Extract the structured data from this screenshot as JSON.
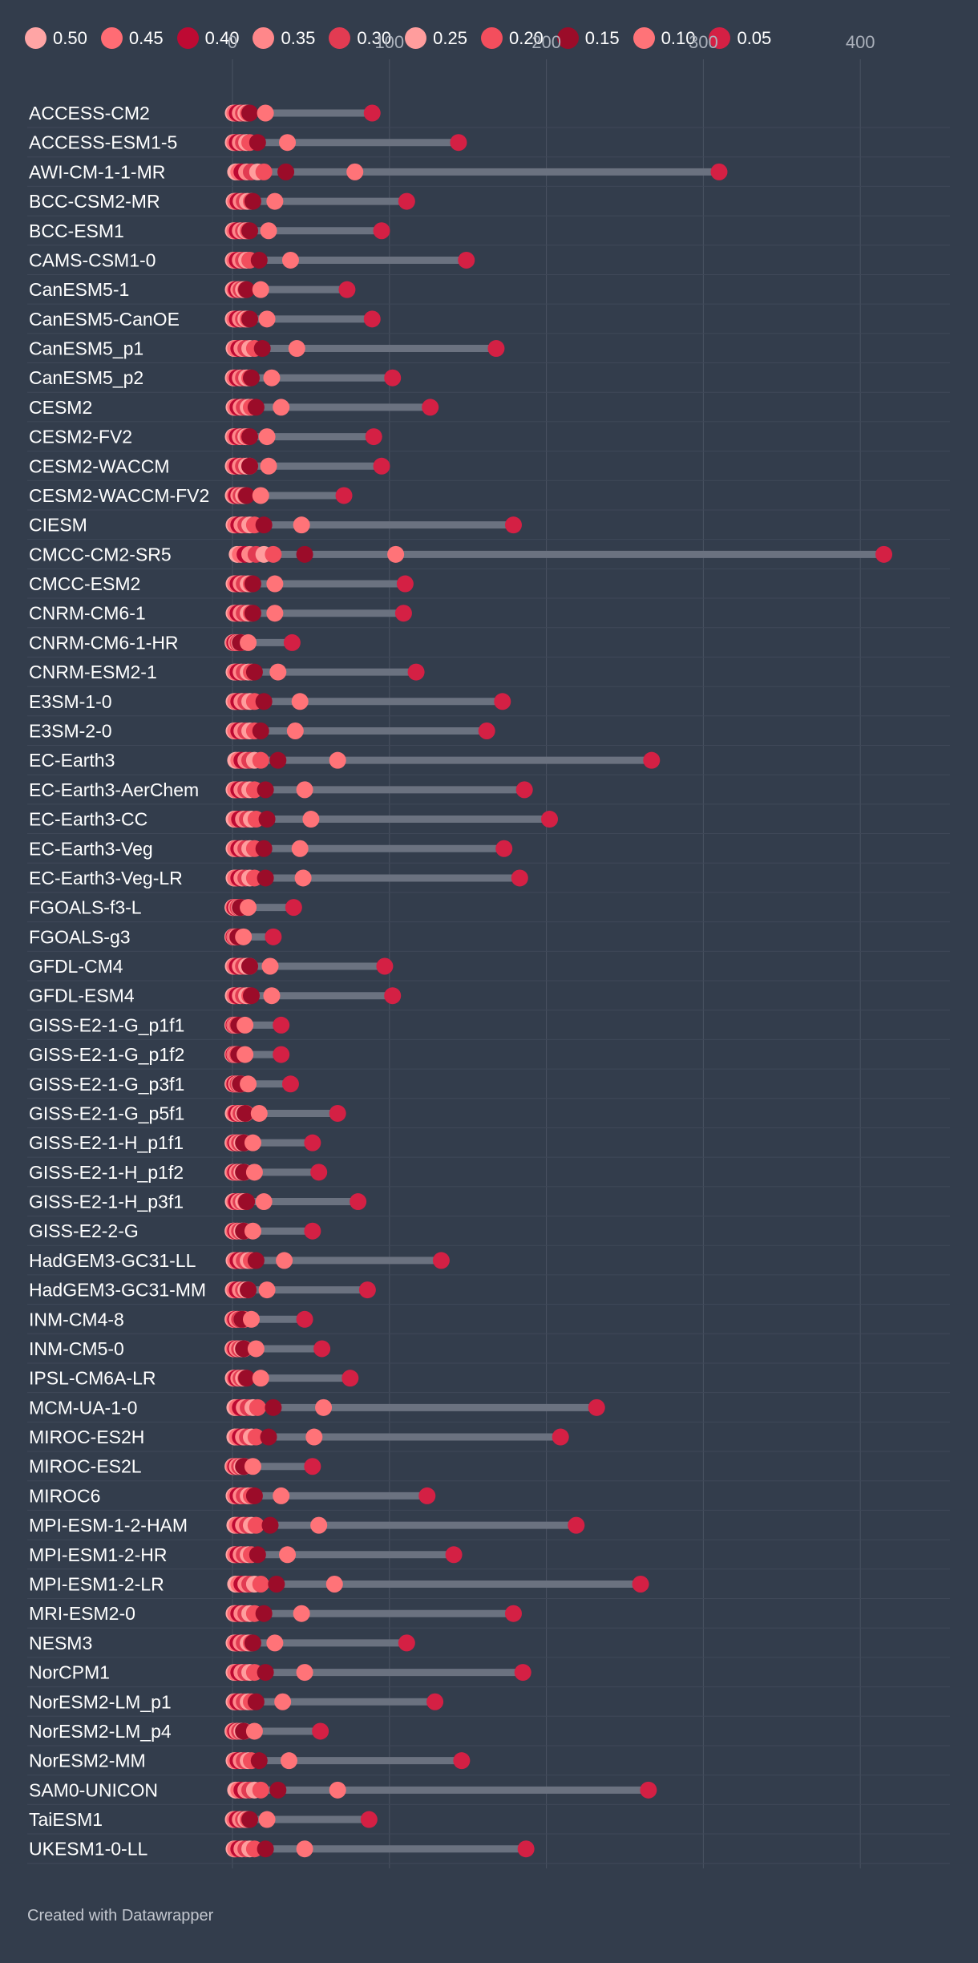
{
  "chart_data": {
    "type": "dot-range",
    "title": "",
    "xlabel": "",
    "ylabel": "",
    "xlim": [
      0,
      450
    ],
    "x_ticks": [
      0,
      100,
      200,
      300,
      400
    ],
    "legend": [
      {
        "label": "0.50",
        "color": "#ffa5a5"
      },
      {
        "label": "0.45",
        "color": "#ff6c74"
      },
      {
        "label": "0.40",
        "color": "#be0a33"
      },
      {
        "label": "0.35",
        "color": "#ff878a"
      },
      {
        "label": "0.30",
        "color": "#e23b52"
      },
      {
        "label": "0.25",
        "color": "#ff9d9d"
      },
      {
        "label": "0.20",
        "color": "#f34e5d"
      },
      {
        "label": "0.15",
        "color": "#9b0c29"
      },
      {
        "label": "0.10",
        "color": "#ff7378"
      },
      {
        "label": "0.05",
        "color": "#d42044"
      }
    ],
    "models": [
      {
        "name": "ACCESS-CM2",
        "values": [
          0.5,
          1.5,
          3,
          5,
          7,
          8.5,
          10,
          11,
          21,
          89
        ]
      },
      {
        "name": "ACCESS-ESM1-5",
        "values": [
          0.5,
          1.5,
          3,
          5,
          7,
          9,
          11,
          16,
          35,
          144
        ]
      },
      {
        "name": "AWI-CM-1-1-MR",
        "values": [
          2,
          4,
          6,
          9,
          12,
          16,
          20,
          34,
          78,
          310
        ]
      },
      {
        "name": "BCC-CSM2-MR",
        "values": [
          1,
          2,
          3.5,
          5.5,
          7.5,
          9.5,
          12,
          13,
          27,
          111
        ]
      },
      {
        "name": "BCC-ESM1",
        "values": [
          0.5,
          1.5,
          3,
          5,
          7,
          8.5,
          10,
          11,
          23,
          95
        ]
      },
      {
        "name": "CAMS-CSM1-0",
        "values": [
          0.5,
          1.5,
          3,
          5,
          7,
          9,
          11,
          17,
          37,
          149
        ]
      },
      {
        "name": "CanESM5-1",
        "values": [
          0.5,
          1.5,
          2.5,
          4,
          5.5,
          7,
          8.5,
          9,
          18,
          73
        ]
      },
      {
        "name": "CanESM5-CanOE",
        "values": [
          0.5,
          1.5,
          3,
          5,
          7,
          8.5,
          10,
          11,
          22,
          89
        ]
      },
      {
        "name": "CanESM5_p1",
        "values": [
          1,
          2,
          4,
          6,
          8.5,
          11,
          14,
          19,
          41,
          168
        ]
      },
      {
        "name": "CanESM5_p2",
        "values": [
          0.5,
          1.5,
          3,
          5,
          7,
          9,
          11,
          12,
          25,
          102
        ]
      },
      {
        "name": "CESM2",
        "values": [
          1,
          2,
          3.5,
          5.5,
          7.5,
          10,
          12,
          15,
          31,
          126
        ]
      },
      {
        "name": "CESM2-FV2",
        "values": [
          0.5,
          1.5,
          3,
          5,
          7,
          8.5,
          10,
          11,
          22,
          90
        ]
      },
      {
        "name": "CESM2-WACCM",
        "values": [
          0.5,
          1.5,
          3,
          5,
          7,
          9,
          11,
          11,
          23,
          95
        ]
      },
      {
        "name": "CESM2-WACCM-FV2",
        "values": [
          0.5,
          1.5,
          2.5,
          4,
          5.5,
          7,
          8.5,
          9,
          18,
          71
        ]
      },
      {
        "name": "CIESM",
        "values": [
          1,
          2,
          4,
          6,
          8.5,
          11,
          14,
          20,
          44,
          179
        ]
      },
      {
        "name": "CMCC-CM2-SR5",
        "values": [
          3,
          5,
          8,
          11,
          15,
          20,
          26,
          46,
          104,
          415
        ]
      },
      {
        "name": "CMCC-ESM2",
        "values": [
          1,
          2,
          3.5,
          5.5,
          7.5,
          10,
          12,
          13,
          27,
          110
        ]
      },
      {
        "name": "CNRM-CM6-1",
        "values": [
          1,
          2,
          3.5,
          5.5,
          7.5,
          10,
          12,
          13,
          27,
          109
        ]
      },
      {
        "name": "CNRM-CM6-1-HR",
        "values": [
          0.3,
          0.8,
          1.5,
          2.5,
          3.5,
          4.5,
          5.5,
          5,
          10,
          38
        ]
      },
      {
        "name": "CNRM-ESM2-1",
        "values": [
          1,
          2,
          3.5,
          5.5,
          7.5,
          10,
          12,
          14,
          29,
          117
        ]
      },
      {
        "name": "E3SM-1-0",
        "values": [
          1,
          2,
          4,
          6,
          8.5,
          11,
          14,
          20,
          43,
          172
        ]
      },
      {
        "name": "E3SM-2-0",
        "values": [
          1,
          2,
          4,
          6,
          8.5,
          11,
          14,
          18,
          40,
          162
        ]
      },
      {
        "name": "EC-Earth3",
        "values": [
          2,
          4,
          6,
          8.5,
          11,
          14,
          18,
          29,
          67,
          267
        ]
      },
      {
        "name": "EC-Earth3-AerChem",
        "values": [
          1,
          2,
          4,
          6,
          8.5,
          11,
          14,
          21,
          46,
          186
        ]
      },
      {
        "name": "EC-Earth3-CC",
        "values": [
          1,
          2.5,
          4.5,
          7,
          9.5,
          12,
          15,
          22,
          50,
          202
        ]
      },
      {
        "name": "EC-Earth3-Veg",
        "values": [
          1,
          2,
          4,
          6,
          8.5,
          11,
          14,
          20,
          43,
          173
        ]
      },
      {
        "name": "EC-Earth3-Veg-LR",
        "values": [
          1,
          2,
          4,
          6,
          8.5,
          11,
          14,
          21,
          45,
          183
        ]
      },
      {
        "name": "FGOALS-f3-L",
        "values": [
          0.3,
          0.8,
          1.5,
          2.5,
          3.5,
          4.5,
          5.5,
          5,
          10,
          39
        ]
      },
      {
        "name": "FGOALS-g3",
        "values": [
          0.2,
          0.5,
          1,
          1.5,
          2,
          2.5,
          3,
          3.5,
          7,
          26
        ]
      },
      {
        "name": "GFDL-CM4",
        "values": [
          0.5,
          1.5,
          3,
          5,
          7,
          9,
          11,
          11,
          24,
          97
        ]
      },
      {
        "name": "GFDL-ESM4",
        "values": [
          0.5,
          1.5,
          3,
          5,
          7,
          9,
          11,
          12,
          25,
          102
        ]
      },
      {
        "name": "GISS-E2-1-G_p1f1",
        "values": [
          0.2,
          0.5,
          1,
          1.5,
          2,
          2.5,
          3,
          4,
          8,
          31
        ]
      },
      {
        "name": "GISS-E2-1-G_p1f2",
        "values": [
          0.2,
          0.5,
          1,
          1.5,
          2,
          2.5,
          3,
          4,
          8,
          31
        ]
      },
      {
        "name": "GISS-E2-1-G_p3f1",
        "values": [
          0.3,
          0.8,
          1.5,
          2.5,
          3.5,
          4.5,
          5.5,
          5,
          10,
          37
        ]
      },
      {
        "name": "GISS-E2-1-G_p5f1",
        "values": [
          0.5,
          1.5,
          2.5,
          4,
          5.5,
          7,
          8.5,
          8,
          17,
          67
        ]
      },
      {
        "name": "GISS-E2-1-H_p1f1",
        "values": [
          0.3,
          1,
          2,
          3,
          4.5,
          6,
          7.5,
          7,
          13,
          51
        ]
      },
      {
        "name": "GISS-E2-1-H_p1f2",
        "values": [
          0.3,
          1,
          2,
          3,
          4.5,
          6,
          7.5,
          7,
          14,
          55
        ]
      },
      {
        "name": "GISS-E2-1-H_p3f1",
        "values": [
          0.5,
          1.5,
          2.5,
          4,
          5.5,
          7,
          8.5,
          9,
          20,
          80
        ]
      },
      {
        "name": "GISS-E2-2-G",
        "values": [
          0.3,
          1,
          2,
          3,
          4.5,
          6,
          7.5,
          7,
          13,
          51
        ]
      },
      {
        "name": "HadGEM3-GC31-LL",
        "values": [
          1,
          2,
          3.5,
          5.5,
          7.5,
          10,
          12,
          15,
          33,
          133
        ]
      },
      {
        "name": "HadGEM3-GC31-MM",
        "values": [
          0.5,
          1.5,
          3,
          5,
          7,
          8.5,
          10,
          10,
          22,
          86
        ]
      },
      {
        "name": "INM-CM4-8",
        "values": [
          0.3,
          1,
          2,
          3,
          4.5,
          6,
          7.5,
          6,
          12,
          46
        ]
      },
      {
        "name": "INM-CM5-0",
        "values": [
          0.3,
          1,
          2,
          3,
          4.5,
          6,
          7.5,
          7,
          15,
          57
        ]
      },
      {
        "name": "IPSL-CM6A-LR",
        "values": [
          0.5,
          1.5,
          2.5,
          4,
          5.5,
          7,
          8.5,
          9,
          18,
          75
        ]
      },
      {
        "name": "MCM-UA-1-0",
        "values": [
          1.5,
          3,
          5,
          7.5,
          10,
          13,
          16,
          26,
          58,
          232
        ]
      },
      {
        "name": "MIROC-ES2H",
        "values": [
          1.5,
          3,
          5,
          7,
          9.5,
          12,
          15,
          23,
          52,
          209
        ]
      },
      {
        "name": "MIROC-ES2L",
        "values": [
          0.3,
          1,
          2,
          3,
          4.5,
          6,
          7.5,
          7,
          13,
          51
        ]
      },
      {
        "name": "MIROC6",
        "values": [
          1,
          2,
          3.5,
          5.5,
          7.5,
          10,
          12,
          14,
          31,
          124
        ]
      },
      {
        "name": "MPI-ESM-1-2-HAM",
        "values": [
          1.5,
          3,
          5,
          7,
          9.5,
          12,
          15,
          24,
          55,
          219
        ]
      },
      {
        "name": "MPI-ESM1-2-HR",
        "values": [
          1,
          2,
          3.5,
          5.5,
          7.5,
          10,
          12,
          16,
          35,
          141
        ]
      },
      {
        "name": "MPI-ESM1-2-LR",
        "values": [
          2,
          4,
          6,
          8.5,
          11,
          14,
          18,
          28,
          65,
          260
        ]
      },
      {
        "name": "MRI-ESM2-0",
        "values": [
          1,
          2,
          4,
          6,
          8.5,
          11,
          14,
          20,
          44,
          179
        ]
      },
      {
        "name": "NESM3",
        "values": [
          1,
          2,
          3.5,
          5.5,
          7.5,
          10,
          12,
          13,
          27,
          111
        ]
      },
      {
        "name": "NorCPM1",
        "values": [
          1,
          2,
          4,
          6,
          8.5,
          11,
          14,
          21,
          46,
          185
        ]
      },
      {
        "name": "NorESM2-LM_p1",
        "values": [
          1,
          2,
          3.5,
          5.5,
          7.5,
          10,
          12,
          15,
          32,
          129
        ]
      },
      {
        "name": "NorESM2-LM_p4",
        "values": [
          0.3,
          1,
          2,
          3,
          4.5,
          6,
          7.5,
          7,
          14,
          56
        ]
      },
      {
        "name": "NorESM2-MM",
        "values": [
          1,
          2,
          3.5,
          5.5,
          7.5,
          10,
          12,
          17,
          36,
          146
        ]
      },
      {
        "name": "SAM0-UNICON",
        "values": [
          2,
          4,
          6,
          8.5,
          11,
          14,
          18,
          29,
          67,
          265
        ]
      },
      {
        "name": "TaiESM1",
        "values": [
          0.5,
          1.5,
          3,
          5,
          7,
          8.5,
          10,
          11,
          22,
          87
        ]
      },
      {
        "name": "UKESM1-0-LL",
        "values": [
          1,
          2,
          4,
          6,
          8.5,
          11,
          14,
          21,
          46,
          187
        ]
      }
    ]
  },
  "footer": {
    "credit": "Created with Datawrapper"
  }
}
